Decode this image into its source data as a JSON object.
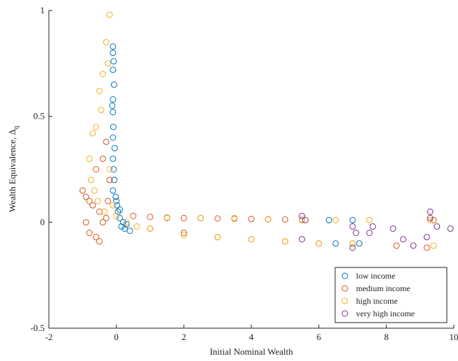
{
  "chart_data": {
    "type": "scatter",
    "xlabel": "Initial Nominal Wealth",
    "ylabel": "Wealth Equivalence, Δ",
    "ylabel_subscript": "q",
    "xlim": [
      -2,
      10
    ],
    "xticks": [
      -2,
      0,
      2,
      4,
      6,
      8,
      10
    ],
    "ylim": [
      -0.5,
      1
    ],
    "yticks": [
      -0.5,
      0,
      0.5,
      1
    ],
    "legend": "lower right",
    "series": [
      {
        "name": "low income",
        "color": "#0072BD",
        "x": [
          -0.1,
          -0.1,
          -0.08,
          -0.1,
          -0.07,
          -0.1,
          -0.12,
          -0.1,
          -0.09,
          -0.1,
          -0.05,
          -0.1,
          -0.08,
          -0.06,
          -0.1,
          0,
          0.05,
          0.1,
          0.2,
          0.3,
          0.15,
          0.25,
          0.4,
          -0.02,
          0.02,
          6.3,
          6.5,
          7.0,
          7.2,
          0.1
        ],
        "values": [
          0.83,
          0.8,
          0.76,
          0.72,
          0.65,
          0.58,
          0.55,
          0.52,
          0.45,
          0.4,
          0.35,
          0.3,
          0.25,
          0.2,
          0.15,
          0.1,
          0.05,
          0.02,
          0,
          -0.01,
          -0.02,
          -0.03,
          -0.04,
          0.12,
          0.08,
          0.01,
          -0.1,
          0.01,
          -0.1,
          0.06
        ]
      },
      {
        "name": "medium income",
        "color": "#D95319",
        "x": [
          -1,
          -0.9,
          -0.8,
          -0.7,
          -0.6,
          -0.5,
          -0.4,
          -0.3,
          -0.2,
          -0.9,
          -0.8,
          -0.6,
          -0.5,
          -0.4,
          -0.3,
          -0.25,
          0.5,
          1,
          1.5,
          2,
          2.5,
          3,
          3.5,
          4,
          4.5,
          5,
          5.5,
          1,
          2,
          3,
          4,
          5,
          6,
          7,
          8.3,
          9.2,
          9.4
        ],
        "values": [
          0.15,
          0.12,
          0.1,
          0.08,
          0.25,
          0.05,
          0.3,
          0.38,
          0.2,
          0,
          -0.05,
          -0.07,
          -0.09,
          0,
          0.02,
          0.1,
          0.03,
          0.025,
          0.022,
          0.02,
          0.02,
          0.018,
          0.017,
          0.015,
          0.014,
          0.013,
          0.012,
          -0.03,
          -0.05,
          -0.07,
          -0.08,
          -0.09,
          -0.1,
          -0.1,
          -0.11,
          -0.12,
          0.01
        ]
      },
      {
        "name": "high income",
        "color": "#EDB120",
        "x": [
          -0.2,
          -0.3,
          -0.25,
          -0.4,
          -0.5,
          -0.45,
          -0.6,
          -0.7,
          -0.8,
          -0.75,
          -0.65,
          -0.55,
          -0.35,
          -0.2,
          -0.1,
          0,
          0.3,
          0.6,
          1,
          2,
          3,
          4,
          5,
          6,
          7,
          1.5,
          2.5,
          3.5,
          4.5,
          5.5,
          6.5,
          7.5,
          9.4,
          9.3
        ],
        "values": [
          0.98,
          0.85,
          0.75,
          0.7,
          0.62,
          0.53,
          0.45,
          0.42,
          0.3,
          0.2,
          0.15,
          0.1,
          0.05,
          0.25,
          0.08,
          0.03,
          0,
          -0.02,
          -0.03,
          -0.06,
          -0.07,
          -0.08,
          -0.09,
          -0.1,
          -0.1,
          0.02,
          0.02,
          0.02,
          0.015,
          0.01,
          0.01,
          0.01,
          -0.11,
          0.01
        ]
      },
      {
        "name": "very high income",
        "color": "#7E2F8E",
        "x": [
          5.5,
          5.6,
          5.5,
          7,
          7.1,
          7.0,
          7.6,
          8.2,
          8.5,
          9.3,
          9.3,
          9.2,
          9.5,
          9.9,
          8.8,
          7.5
        ],
        "values": [
          0.03,
          0.01,
          -0.08,
          -0.02,
          -0.05,
          -0.12,
          -0.02,
          -0.03,
          -0.08,
          0.05,
          0.02,
          -0.07,
          -0.02,
          -0.03,
          -0.11,
          -0.05
        ]
      }
    ]
  }
}
